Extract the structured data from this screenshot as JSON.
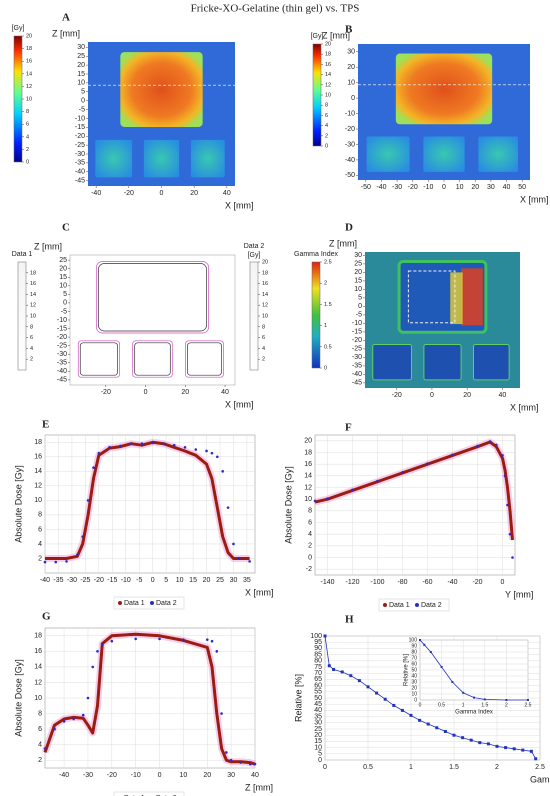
{
  "title": "Fricke-XO-Gelatine (thin gel) vs. TPS",
  "chart_data": [
    {
      "type": "map",
      "label": "A",
      "colormap": "jet",
      "xlabel": "X [mm]",
      "ylabel": "Z [mm]",
      "xlim": [
        -45,
        45
      ],
      "xticks": [
        -40,
        -20,
        0,
        20,
        40
      ],
      "ylim": [
        -48,
        33
      ],
      "yticks": [
        30,
        25,
        20,
        15,
        10,
        5,
        0,
        -5,
        -10,
        -15,
        -20,
        -25,
        -30,
        -35,
        -40,
        -45
      ],
      "colorbars": [
        {
          "title": "[Gy]",
          "lim": [
            0,
            20
          ],
          "ticks": [
            0,
            2,
            4,
            6,
            8,
            10,
            12,
            14,
            16,
            18,
            20
          ]
        }
      ]
    },
    {
      "type": "map",
      "label": "B",
      "colormap": "jet",
      "xlabel": "X [mm]",
      "ylabel": "Z [mm]",
      "xlim": [
        -55,
        55
      ],
      "xticks": [
        -50,
        -40,
        -30,
        -20,
        -10,
        0,
        10,
        20,
        30,
        40,
        50
      ],
      "ylim": [
        -53,
        35
      ],
      "yticks": [
        30,
        20,
        10,
        0,
        -10,
        -20,
        -30,
        -40,
        -50
      ],
      "colorbars": [
        {
          "title": "[Gy]",
          "lim": [
            0,
            20
          ],
          "ticks": [
            0,
            2,
            4,
            6,
            8,
            10,
            12,
            14,
            16,
            18,
            20
          ]
        }
      ]
    },
    {
      "type": "contour",
      "label": "C",
      "colormap": "gray",
      "xlabel": "X [mm]",
      "ylabel": "Z [mm]",
      "xlim": [
        -38,
        45
      ],
      "xticks": [
        -20,
        0,
        20,
        40
      ],
      "ylim": [
        -48,
        28
      ],
      "yticks": [
        25,
        20,
        15,
        10,
        5,
        0,
        -5,
        -10,
        -15,
        -20,
        -25,
        -30,
        -35,
        -40,
        -45
      ],
      "colorbars": [
        {
          "title": "Data 1",
          "lim": [
            0,
            20
          ],
          "ticks": [
            2,
            4,
            6,
            8,
            10,
            12,
            14,
            16,
            18
          ]
        },
        {
          "title": "Data 2",
          "unit": "[Gy]",
          "lim": [
            0,
            20
          ],
          "ticks": [
            2,
            4,
            6,
            8,
            10,
            12,
            14,
            16,
            18,
            20
          ]
        }
      ]
    },
    {
      "type": "map",
      "label": "D",
      "colormap": "gamma",
      "xlabel": "X [mm]",
      "ylabel": "Z [mm]",
      "xlim": [
        -38,
        50
      ],
      "xticks": [
        -20,
        0,
        20,
        40
      ],
      "ylim": [
        -48,
        32
      ],
      "yticks": [
        30,
        25,
        20,
        15,
        10,
        5,
        0,
        -5,
        -10,
        -15,
        -20,
        -25,
        -30,
        -35,
        -40,
        -45
      ],
      "colorbars": [
        {
          "title": "Gamma Index",
          "lim": [
            0,
            2.5
          ],
          "ticks": [
            0,
            0.5,
            1,
            1.5,
            2,
            2.5
          ]
        }
      ]
    },
    {
      "type": "line",
      "label": "E",
      "xlabel": "X [mm]",
      "ylabel": "Absolute Dose [Gy]",
      "grid": true,
      "legend": "bottom",
      "xlim": [
        -40,
        38
      ],
      "xticks": [
        -40,
        -35,
        -30,
        -25,
        -20,
        -15,
        -10,
        -5,
        0,
        5,
        10,
        15,
        20,
        25,
        30,
        35
      ],
      "ylim": [
        0,
        19
      ],
      "yticks": [
        2,
        4,
        6,
        8,
        10,
        12,
        14,
        16,
        18
      ],
      "x": [
        -40,
        -36,
        -32,
        -28,
        -26,
        -24,
        -22,
        -20,
        -16,
        -12,
        -8,
        -4,
        0,
        4,
        8,
        12,
        16,
        20,
        22,
        24,
        26,
        28,
        30,
        32,
        36
      ],
      "series": [
        {
          "name": "Data 1",
          "color": "#9b1c10",
          "style": "line",
          "values": [
            2,
            2,
            2,
            2.3,
            4,
            8,
            13,
            16.2,
            17.2,
            17.4,
            17.8,
            17.6,
            18,
            17.8,
            17.3,
            16.8,
            16.2,
            15,
            13,
            9,
            5,
            2.8,
            2,
            2,
            2
          ]
        },
        {
          "name": "Data 2",
          "color": "#2a2ad0",
          "style": "dots",
          "values": [
            1.5,
            1.5,
            1.6,
            2.5,
            5,
            10,
            14.5,
            16.5,
            17.3,
            17.5,
            17.8,
            17.8,
            17.9,
            17.8,
            17.6,
            17.3,
            17,
            16.8,
            16.5,
            16,
            14,
            9,
            4,
            2,
            1.6
          ]
        }
      ]
    },
    {
      "type": "line",
      "label": "F",
      "xlabel": "Y [mm]",
      "ylabel": "Absolute Dose [Gy]",
      "grid": true,
      "legend": "bottom",
      "xlim": [
        -150,
        10
      ],
      "xticks": [
        -140,
        -120,
        -100,
        -80,
        -60,
        -40,
        -20,
        0
      ],
      "ylim": [
        -3,
        21
      ],
      "yticks": [
        -2,
        0,
        2,
        4,
        6,
        8,
        10,
        12,
        14,
        16,
        18,
        20
      ],
      "x": [
        -150,
        -140,
        -120,
        -100,
        -80,
        -60,
        -40,
        -20,
        -10,
        -5,
        0,
        2,
        4,
        6,
        8
      ],
      "series": [
        {
          "name": "Data 1",
          "color": "#9b1c10",
          "style": "line",
          "values": [
            9.5,
            10,
            11.5,
            13,
            14.5,
            16,
            17.5,
            19,
            19.8,
            19,
            17,
            15,
            12,
            8,
            3
          ]
        },
        {
          "name": "Data 2",
          "color": "#2a2ad0",
          "style": "dots",
          "values": [
            9.7,
            10.1,
            11.6,
            13.1,
            14.6,
            16.1,
            17.6,
            19.1,
            19.9,
            19.3,
            17.5,
            14,
            9,
            4,
            0
          ]
        }
      ]
    },
    {
      "type": "line",
      "label": "G",
      "xlabel": "Z [mm]",
      "ylabel": "Absolute Dose [Gy]",
      "grid": true,
      "legend": "bottom",
      "xlim": [
        -48,
        40
      ],
      "xticks": [
        -40,
        -30,
        -20,
        -10,
        0,
        10,
        20,
        30,
        40
      ],
      "ylim": [
        1,
        19
      ],
      "yticks": [
        2,
        4,
        6,
        8,
        10,
        12,
        14,
        16,
        18
      ],
      "x": [
        -48,
        -44,
        -40,
        -36,
        -32,
        -30,
        -28,
        -26,
        -24,
        -20,
        -10,
        0,
        10,
        20,
        22,
        24,
        26,
        28,
        30,
        34,
        38,
        40
      ],
      "series": [
        {
          "name": "Data 1",
          "color": "#9b1c10",
          "style": "line",
          "values": [
            3,
            6.5,
            7.3,
            7.5,
            7.4,
            6.5,
            5.5,
            9,
            17,
            18,
            18.2,
            18,
            17.4,
            16.5,
            14,
            8,
            3.5,
            2,
            1.8,
            1.8,
            1.7,
            1.5
          ]
        },
        {
          "name": "Data 2",
          "color": "#2a2ad0",
          "style": "dots",
          "values": [
            3.5,
            6,
            7,
            7.3,
            7.8,
            10,
            14,
            16,
            16.8,
            17.3,
            17.6,
            17.6,
            17.5,
            17.5,
            17.3,
            16,
            8,
            3,
            2,
            1.7,
            1.5,
            1.5
          ]
        }
      ]
    },
    {
      "type": "line",
      "label": "H",
      "xlabel": "Gamma Index",
      "ylabel": "Relative [%]",
      "grid": true,
      "xlim": [
        0,
        2.5
      ],
      "xticks": [
        0,
        0.5,
        1,
        1.5,
        2,
        2.5
      ],
      "ylim": [
        0,
        100
      ],
      "yticks": [
        0,
        5,
        10,
        15,
        20,
        25,
        30,
        35,
        40,
        45,
        50,
        55,
        60,
        65,
        70,
        75,
        80,
        85,
        90,
        95,
        100
      ],
      "x": [
        0,
        0.05,
        0.1,
        0.2,
        0.3,
        0.4,
        0.5,
        0.6,
        0.7,
        0.8,
        0.9,
        1.0,
        1.1,
        1.2,
        1.3,
        1.4,
        1.5,
        1.6,
        1.7,
        1.8,
        1.9,
        2.0,
        2.1,
        2.2,
        2.3,
        2.4,
        2.45
      ],
      "series": [
        {
          "color": "#2233bb",
          "style": "markers",
          "values": [
            100,
            76,
            73,
            71,
            68,
            64,
            59,
            54,
            49,
            44,
            40,
            36,
            32,
            29,
            26,
            23,
            20,
            18,
            16,
            14,
            13,
            11,
            10,
            9,
            8,
            7,
            1
          ]
        }
      ],
      "inset": {
        "xlabel": "Gamma Index",
        "ylabel": "Relative [%]",
        "grid": true,
        "xlim": [
          0,
          2.5
        ],
        "xticks": [
          0,
          0.5,
          1,
          1.5,
          2,
          2.5
        ],
        "ylim": [
          0,
          100
        ],
        "yticks": [
          0,
          10,
          20,
          30,
          40,
          50,
          60,
          70,
          80,
          90,
          100
        ],
        "x": [
          0,
          0.1,
          0.25,
          0.5,
          0.75,
          1,
          1.25,
          1.5,
          2,
          2.5
        ],
        "series": [
          {
            "color": "#2233bb",
            "style": "markers",
            "values": [
              100,
              92,
              80,
              55,
              30,
              12,
              4,
              1,
              0,
              0
            ]
          }
        ]
      }
    }
  ]
}
